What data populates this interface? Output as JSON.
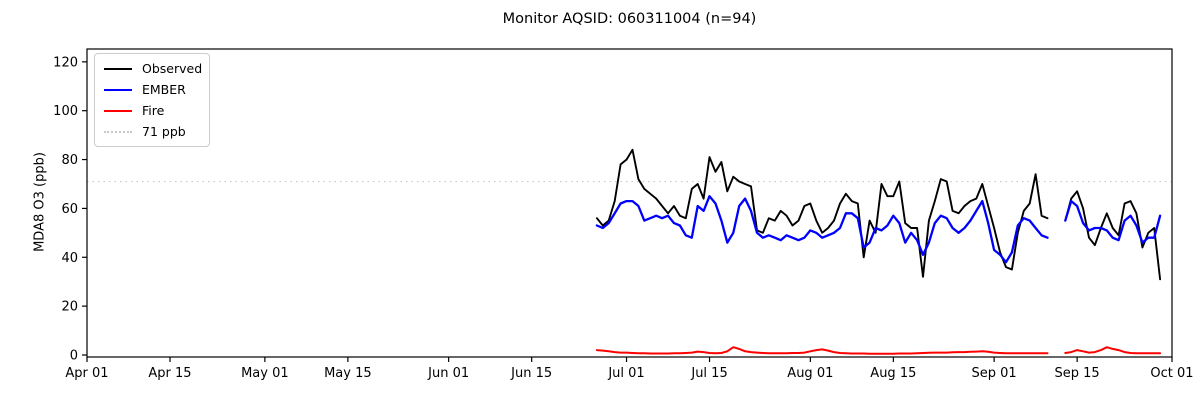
{
  "title": "Monitor AQSID: 060311004 (n=94)",
  "colors": {
    "observed": "#000000",
    "ember": "#0000ff",
    "fire": "#ff0000",
    "threshold": "#c9c9c9",
    "axes": "#000000"
  },
  "legend": {
    "items": [
      {
        "label": "Observed",
        "color": "#000000",
        "style": "solid"
      },
      {
        "label": "EMBER",
        "color": "#0000ff",
        "style": "solid"
      },
      {
        "label": "Fire",
        "color": "#ff0000",
        "style": "solid"
      },
      {
        "label": "71 ppb",
        "color": "#c9c9c9",
        "style": "dotted"
      }
    ]
  },
  "chart_data": {
    "type": "line",
    "title": "Monitor AQSID: 060311004 (n=94)",
    "xlabel": "",
    "ylabel": "MDA8 O3 (ppb)",
    "ylim": [
      -2,
      126
    ],
    "yticks": [
      0,
      20,
      40,
      60,
      80,
      100,
      120
    ],
    "xticks": [
      {
        "label": "Apr 01",
        "day": 0
      },
      {
        "label": "Apr 15",
        "day": 14
      },
      {
        "label": "May 01",
        "day": 30
      },
      {
        "label": "May 15",
        "day": 44
      },
      {
        "label": "Jun 01",
        "day": 61
      },
      {
        "label": "Jun 15",
        "day": 75
      },
      {
        "label": "Jul 01",
        "day": 91
      },
      {
        "label": "Jul 15",
        "day": 105
      },
      {
        "label": "Aug 01",
        "day": 122
      },
      {
        "label": "Aug 15",
        "day": 136
      },
      {
        "label": "Sep 01",
        "day": 153
      },
      {
        "label": "Sep 15",
        "day": 167
      },
      {
        "label": "Oct 01",
        "day": 183
      }
    ],
    "x_total_days": 183,
    "x_start_day": 86,
    "grid": false,
    "legend_position": "upper left",
    "threshold": {
      "value": 71,
      "label": "71 ppb",
      "color": "#c9c9c9",
      "style": "dotted"
    },
    "dates": [
      "Jun 26",
      "Jun 27",
      "Jun 28",
      "Jun 29",
      "Jun 30",
      "Jul 01",
      "Jul 02",
      "Jul 03",
      "Jul 04",
      "Jul 05",
      "Jul 06",
      "Jul 07",
      "Jul 08",
      "Jul 09",
      "Jul 10",
      "Jul 11",
      "Jul 12",
      "Jul 13",
      "Jul 14",
      "Jul 15",
      "Jul 16",
      "Jul 17",
      "Jul 18",
      "Jul 19",
      "Jul 20",
      "Jul 21",
      "Jul 22",
      "Jul 23",
      "Jul 24",
      "Jul 25",
      "Jul 26",
      "Jul 27",
      "Jul 28",
      "Jul 29",
      "Jul 30",
      "Jul 31",
      "Aug 01",
      "Aug 02",
      "Aug 03",
      "Aug 04",
      "Aug 05",
      "Aug 06",
      "Aug 07",
      "Aug 08",
      "Aug 09",
      "Aug 10",
      "Aug 11",
      "Aug 12",
      "Aug 13",
      "Aug 14",
      "Aug 15",
      "Aug 16",
      "Aug 17",
      "Aug 18",
      "Aug 19",
      "Aug 20",
      "Aug 21",
      "Aug 22",
      "Aug 23",
      "Aug 24",
      "Aug 25",
      "Aug 26",
      "Aug 27",
      "Aug 28",
      "Aug 29",
      "Aug 30",
      "Aug 31",
      "Sep 01",
      "Sep 02",
      "Sep 03",
      "Sep 04",
      "Sep 05",
      "Sep 06",
      "Sep 07",
      "Sep 08",
      "Sep 09",
      "Sep 10",
      "Sep 11",
      "Sep 12",
      "Sep 13",
      "Sep 14",
      "Sep 15",
      "Sep 16",
      "Sep 17",
      "Sep 18",
      "Sep 19",
      "Sep 20",
      "Sep 21",
      "Sep 22",
      "Sep 23",
      "Sep 24",
      "Sep 25",
      "Sep 26",
      "Sep 27",
      "Sep 28",
      "Sep 29"
    ],
    "series": [
      {
        "name": "Observed",
        "color": "#000000",
        "width": 1.9,
        "values": [
          56,
          53,
          55,
          63,
          78,
          80,
          84,
          72,
          68,
          66,
          64,
          61,
          58,
          61,
          57,
          56,
          68,
          70,
          64,
          81,
          75,
          79,
          67,
          73,
          71,
          70,
          69,
          51,
          50,
          56,
          55,
          59,
          57,
          53,
          55,
          61,
          62,
          55,
          50,
          52,
          55,
          62,
          66,
          63,
          62,
          40,
          55,
          50,
          70,
          65,
          65,
          71,
          54,
          52,
          52,
          32,
          55,
          63,
          72,
          71,
          59,
          58,
          61,
          63,
          64,
          70,
          61,
          52,
          42,
          36,
          35,
          50,
          59,
          62,
          74,
          57,
          56,
          null,
          null,
          55,
          64,
          67,
          60,
          48,
          45,
          52,
          58,
          52,
          49,
          62,
          63,
          58,
          44,
          50,
          52,
          31
        ]
      },
      {
        "name": "EMBER",
        "color": "#0000ff",
        "width": 2.3,
        "values": [
          53,
          52,
          54,
          58,
          62,
          63,
          63,
          61,
          55,
          56,
          57,
          56,
          57,
          54,
          53,
          49,
          48,
          61,
          59,
          65,
          62,
          55,
          46,
          50,
          61,
          64,
          59,
          50,
          48,
          49,
          48,
          47,
          49,
          48,
          47,
          48,
          51,
          50,
          48,
          49,
          50,
          52,
          58,
          58,
          56,
          44,
          46,
          52,
          51,
          53,
          57,
          54,
          46,
          50,
          47,
          41,
          46,
          54,
          57,
          56,
          52,
          50,
          52,
          55,
          59,
          63,
          54,
          43,
          41,
          38,
          42,
          53,
          56,
          55,
          52,
          49,
          48,
          null,
          null,
          55,
          63,
          61,
          54,
          51,
          52,
          52,
          51,
          48,
          47,
          55,
          57,
          53,
          46,
          48,
          48,
          57
        ]
      },
      {
        "name": "Fire",
        "color": "#ff0000",
        "width": 2.0,
        "values": [
          2.0,
          1.8,
          1.5,
          1.2,
          1.0,
          1.0,
          0.8,
          0.7,
          0.7,
          0.6,
          0.6,
          0.6,
          0.6,
          0.7,
          0.7,
          0.8,
          1.0,
          1.4,
          1.2,
          0.8,
          0.7,
          0.8,
          1.5,
          3.2,
          2.5,
          1.5,
          1.2,
          1.0,
          0.8,
          0.7,
          0.7,
          0.7,
          0.7,
          0.8,
          0.8,
          1.0,
          1.5,
          2.0,
          2.3,
          1.8,
          1.2,
          0.8,
          0.7,
          0.6,
          0.6,
          0.6,
          0.5,
          0.5,
          0.5,
          0.5,
          0.5,
          0.6,
          0.6,
          0.6,
          0.7,
          0.8,
          0.9,
          1.0,
          1.0,
          1.0,
          1.1,
          1.2,
          1.2,
          1.3,
          1.4,
          1.5,
          1.3,
          1.0,
          0.8,
          0.7,
          0.7,
          0.7,
          0.7,
          0.7,
          0.7,
          0.7,
          0.7,
          null,
          null,
          0.8,
          1.2,
          2.0,
          1.5,
          1.0,
          1.2,
          2.0,
          3.2,
          2.5,
          2.0,
          1.2,
          0.8,
          0.7,
          0.7,
          0.7,
          0.7,
          0.7
        ]
      }
    ]
  }
}
